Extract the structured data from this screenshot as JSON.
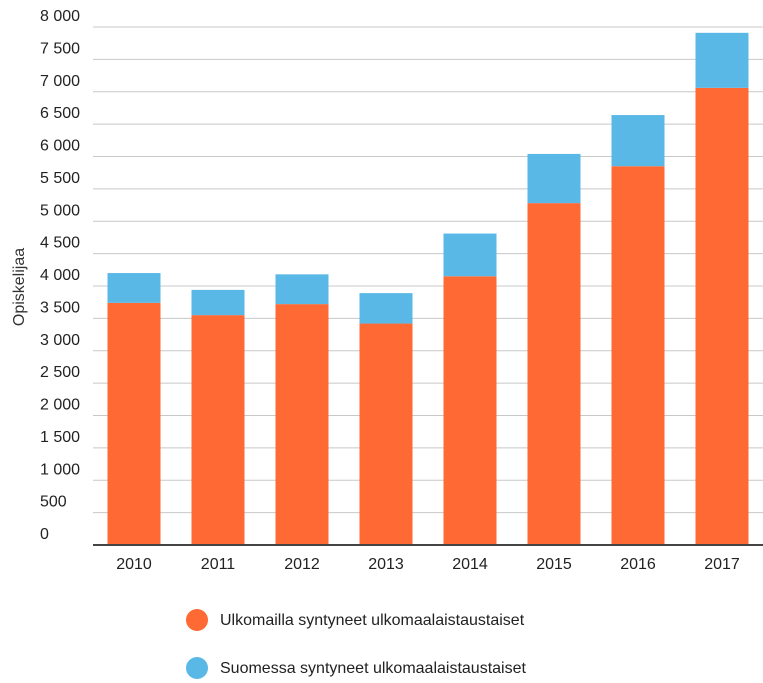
{
  "chart_data": {
    "type": "bar",
    "stacked": true,
    "ylabel": "Opiskelijaa",
    "xlabel": "",
    "ylim": [
      0,
      8000
    ],
    "y_ticks": [
      {
        "value": 0,
        "label": "0"
      },
      {
        "value": 500,
        "label": "500"
      },
      {
        "value": 1000,
        "label": "1 000"
      },
      {
        "value": 1500,
        "label": "1 500"
      },
      {
        "value": 2000,
        "label": "2 000"
      },
      {
        "value": 2500,
        "label": "2 500"
      },
      {
        "value": 3000,
        "label": "3 000"
      },
      {
        "value": 3500,
        "label": "3 500"
      },
      {
        "value": 4000,
        "label": "4 000"
      },
      {
        "value": 4500,
        "label": "4 500"
      },
      {
        "value": 5000,
        "label": "5 000"
      },
      {
        "value": 5500,
        "label": "5 500"
      },
      {
        "value": 6000,
        "label": "6 000"
      },
      {
        "value": 6500,
        "label": "6 500"
      },
      {
        "value": 7000,
        "label": "7 000"
      },
      {
        "value": 7500,
        "label": "7 500"
      },
      {
        "value": 8000,
        "label": "8 000"
      }
    ],
    "grid": true,
    "legend_position": "bottom",
    "categories": [
      "2010",
      "2011",
      "2012",
      "2013",
      "2014",
      "2015",
      "2016",
      "2017"
    ],
    "series": [
      {
        "name": "Ulkomailla syntyneet ulkomaalaistaustaiset",
        "color": "#ff6933",
        "values": [
          3740,
          3550,
          3720,
          3420,
          4150,
          5280,
          5850,
          7060
        ]
      },
      {
        "name": "Suomessa syntyneet ulkomaalaistaustaiset",
        "color": "#5ab8e6",
        "values": [
          460,
          390,
          460,
          470,
          660,
          760,
          790,
          850
        ]
      }
    ]
  }
}
